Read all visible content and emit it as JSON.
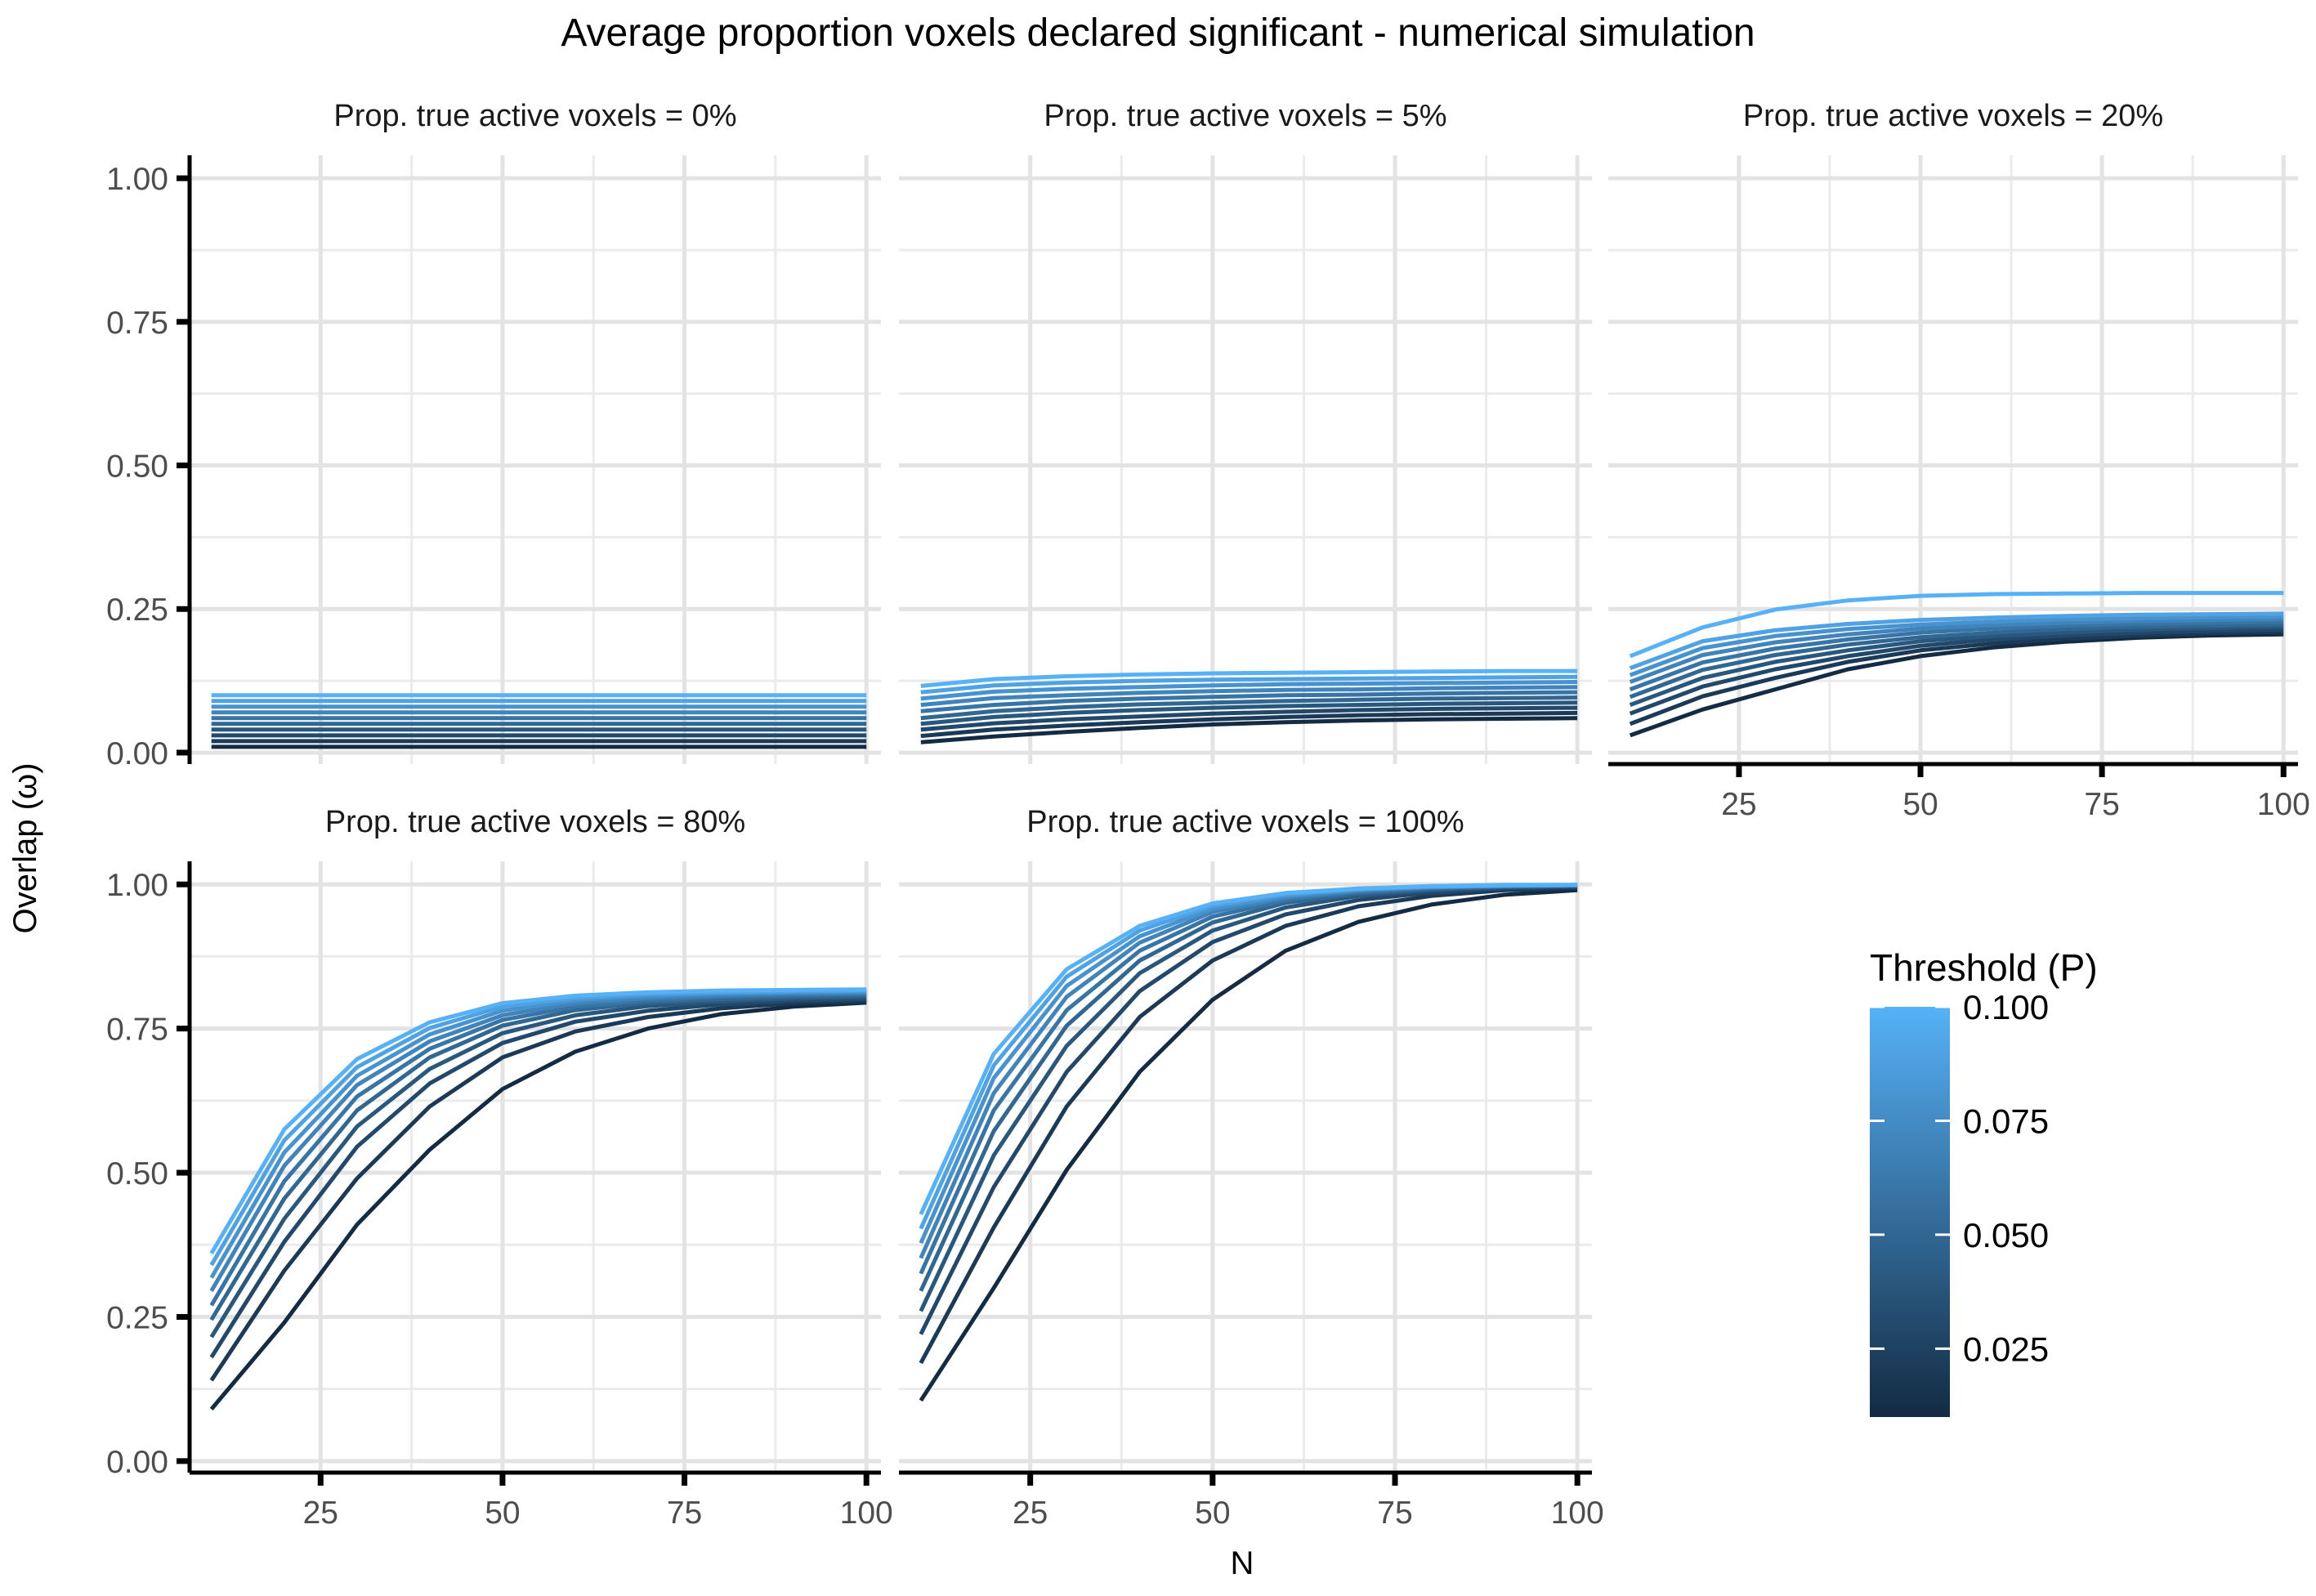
{
  "title": "Average proportion voxels declared significant - numerical simulation",
  "ylabel": "Overlap (ω)",
  "xlabel": "N",
  "legend": {
    "title": "Threshold (P)",
    "ticks": [
      "0.100",
      "0.075",
      "0.050",
      "0.025"
    ],
    "tick_values": [
      0.1,
      0.075,
      0.05,
      0.025
    ],
    "range": [
      0.01,
      0.1
    ],
    "color_low": "#132B43",
    "color_high": "#56B1F7"
  },
  "chart_data": {
    "type": "line",
    "facet_layout": "3 columns, 2 rows",
    "x_ticks": [
      "25",
      "50",
      "75",
      "100"
    ],
    "x_tick_values": [
      25,
      50,
      75,
      100
    ],
    "y_ticks": [
      "0.00",
      "0.25",
      "0.50",
      "0.75",
      "1.00"
    ],
    "y_tick_values": [
      0,
      0.25,
      0.5,
      0.75,
      1
    ],
    "xlim": [
      7,
      102
    ],
    "ylim": [
      -0.02,
      1.04
    ],
    "grid": true,
    "legend_position": "right",
    "x": [
      10,
      20,
      30,
      40,
      50,
      60,
      70,
      80,
      90,
      100
    ],
    "thresholds": [
      0.01,
      0.02,
      0.03,
      0.04,
      0.05,
      0.06,
      0.07,
      0.08,
      0.09,
      0.1
    ],
    "panels": [
      {
        "strip": "Prop. true active voxels = 0%",
        "show_x_axis": false,
        "series": [
          {
            "threshold": 0.01,
            "values": [
              0.01,
              0.01,
              0.01,
              0.01,
              0.01,
              0.01,
              0.01,
              0.01,
              0.01,
              0.01
            ]
          },
          {
            "threshold": 0.02,
            "values": [
              0.02,
              0.02,
              0.02,
              0.02,
              0.02,
              0.02,
              0.02,
              0.02,
              0.02,
              0.02
            ]
          },
          {
            "threshold": 0.03,
            "values": [
              0.03,
              0.03,
              0.03,
              0.03,
              0.03,
              0.03,
              0.03,
              0.03,
              0.03,
              0.03
            ]
          },
          {
            "threshold": 0.04,
            "values": [
              0.04,
              0.04,
              0.04,
              0.04,
              0.04,
              0.04,
              0.04,
              0.04,
              0.04,
              0.04
            ]
          },
          {
            "threshold": 0.05,
            "values": [
              0.05,
              0.05,
              0.05,
              0.05,
              0.05,
              0.05,
              0.05,
              0.05,
              0.05,
              0.05
            ]
          },
          {
            "threshold": 0.06,
            "values": [
              0.06,
              0.06,
              0.06,
              0.06,
              0.06,
              0.06,
              0.06,
              0.06,
              0.06,
              0.06
            ]
          },
          {
            "threshold": 0.07,
            "values": [
              0.07,
              0.07,
              0.07,
              0.07,
              0.07,
              0.07,
              0.07,
              0.07,
              0.07,
              0.07
            ]
          },
          {
            "threshold": 0.08,
            "values": [
              0.08,
              0.08,
              0.08,
              0.08,
              0.08,
              0.08,
              0.08,
              0.08,
              0.08,
              0.08
            ]
          },
          {
            "threshold": 0.09,
            "values": [
              0.09,
              0.09,
              0.09,
              0.09,
              0.09,
              0.09,
              0.09,
              0.09,
              0.09,
              0.09
            ]
          },
          {
            "threshold": 0.1,
            "values": [
              0.1,
              0.1,
              0.1,
              0.1,
              0.1,
              0.1,
              0.1,
              0.1,
              0.1,
              0.1
            ]
          }
        ]
      },
      {
        "strip": "Prop. true active voxels = 5%",
        "show_x_axis": false,
        "series": [
          {
            "threshold": 0.01,
            "values": [
              0.018,
              0.028,
              0.036,
              0.043,
              0.049,
              0.053,
              0.056,
              0.058,
              0.059,
              0.06
            ]
          },
          {
            "threshold": 0.02,
            "values": [
              0.029,
              0.04,
              0.047,
              0.053,
              0.058,
              0.062,
              0.065,
              0.067,
              0.068,
              0.069
            ]
          },
          {
            "threshold": 0.03,
            "values": [
              0.04,
              0.051,
              0.058,
              0.063,
              0.068,
              0.071,
              0.074,
              0.076,
              0.077,
              0.078
            ]
          },
          {
            "threshold": 0.04,
            "values": [
              0.05,
              0.062,
              0.069,
              0.074,
              0.078,
              0.081,
              0.083,
              0.085,
              0.086,
              0.087
            ]
          },
          {
            "threshold": 0.05,
            "values": [
              0.06,
              0.072,
              0.079,
              0.084,
              0.087,
              0.09,
              0.092,
              0.094,
              0.095,
              0.096
            ]
          },
          {
            "threshold": 0.06,
            "values": [
              0.072,
              0.083,
              0.09,
              0.094,
              0.097,
              0.1,
              0.101,
              0.103,
              0.104,
              0.105
            ]
          },
          {
            "threshold": 0.07,
            "values": [
              0.083,
              0.095,
              0.1,
              0.104,
              0.107,
              0.109,
              0.11,
              0.112,
              0.113,
              0.114
            ]
          },
          {
            "threshold": 0.08,
            "values": [
              0.094,
              0.106,
              0.111,
              0.114,
              0.117,
              0.119,
              0.12,
              0.121,
              0.122,
              0.123
            ]
          },
          {
            "threshold": 0.09,
            "values": [
              0.105,
              0.117,
              0.122,
              0.125,
              0.127,
              0.128,
              0.129,
              0.13,
              0.131,
              0.132
            ]
          },
          {
            "threshold": 0.1,
            "values": [
              0.116,
              0.128,
              0.133,
              0.136,
              0.138,
              0.139,
              0.14,
              0.141,
              0.142,
              0.142
            ]
          }
        ]
      },
      {
        "strip": "Prop. true active voxels = 20%",
        "show_x_axis": true,
        "series": [
          {
            "threshold": 0.01,
            "values": [
              0.03,
              0.075,
              0.11,
              0.145,
              0.168,
              0.183,
              0.193,
              0.2,
              0.204,
              0.206
            ]
          },
          {
            "threshold": 0.02,
            "values": [
              0.05,
              0.098,
              0.13,
              0.158,
              0.178,
              0.19,
              0.198,
              0.204,
              0.208,
              0.21
            ]
          },
          {
            "threshold": 0.03,
            "values": [
              0.068,
              0.115,
              0.145,
              0.168,
              0.186,
              0.197,
              0.204,
              0.209,
              0.212,
              0.214
            ]
          },
          {
            "threshold": 0.04,
            "values": [
              0.083,
              0.13,
              0.158,
              0.178,
              0.194,
              0.203,
              0.209,
              0.214,
              0.217,
              0.219
            ]
          },
          {
            "threshold": 0.05,
            "values": [
              0.097,
              0.144,
              0.17,
              0.188,
              0.201,
              0.209,
              0.215,
              0.219,
              0.221,
              0.223
            ]
          },
          {
            "threshold": 0.06,
            "values": [
              0.11,
              0.157,
              0.181,
              0.197,
              0.209,
              0.216,
              0.221,
              0.224,
              0.226,
              0.228
            ]
          },
          {
            "threshold": 0.07,
            "values": [
              0.123,
              0.17,
              0.192,
              0.206,
              0.216,
              0.222,
              0.226,
              0.229,
              0.231,
              0.233
            ]
          },
          {
            "threshold": 0.08,
            "values": [
              0.135,
              0.182,
              0.203,
              0.215,
              0.223,
              0.228,
              0.232,
              0.234,
              0.236,
              0.237
            ]
          },
          {
            "threshold": 0.09,
            "values": [
              0.147,
              0.194,
              0.213,
              0.224,
              0.231,
              0.235,
              0.238,
              0.24,
              0.241,
              0.242
            ]
          },
          {
            "threshold": 0.1,
            "values": [
              0.168,
              0.218,
              0.249,
              0.265,
              0.273,
              0.276,
              0.277,
              0.278,
              0.278,
              0.278
            ]
          }
        ]
      },
      {
        "strip": "Prop. true active voxels = 80%",
        "show_x_axis": true,
        "series": [
          {
            "threshold": 0.01,
            "values": [
              0.09,
              0.24,
              0.41,
              0.54,
              0.645,
              0.71,
              0.75,
              0.775,
              0.788,
              0.795
            ]
          },
          {
            "threshold": 0.02,
            "values": [
              0.14,
              0.33,
              0.49,
              0.615,
              0.7,
              0.745,
              0.77,
              0.785,
              0.794,
              0.798
            ]
          },
          {
            "threshold": 0.03,
            "values": [
              0.18,
              0.38,
              0.545,
              0.655,
              0.725,
              0.762,
              0.781,
              0.792,
              0.798,
              0.801
            ]
          },
          {
            "threshold": 0.04,
            "values": [
              0.215,
              0.42,
              0.58,
              0.68,
              0.742,
              0.773,
              0.789,
              0.797,
              0.802,
              0.804
            ]
          },
          {
            "threshold": 0.05,
            "values": [
              0.245,
              0.455,
              0.608,
              0.7,
              0.755,
              0.782,
              0.795,
              0.801,
              0.805,
              0.807
            ]
          },
          {
            "threshold": 0.06,
            "values": [
              0.27,
              0.485,
              0.632,
              0.715,
              0.765,
              0.788,
              0.799,
              0.805,
              0.808,
              0.81
            ]
          },
          {
            "threshold": 0.07,
            "values": [
              0.295,
              0.512,
              0.652,
              0.728,
              0.773,
              0.794,
              0.803,
              0.808,
              0.811,
              0.812
            ]
          },
          {
            "threshold": 0.08,
            "values": [
              0.318,
              0.535,
              0.668,
              0.74,
              0.781,
              0.799,
              0.807,
              0.811,
              0.813,
              0.814
            ]
          },
          {
            "threshold": 0.09,
            "values": [
              0.34,
              0.556,
              0.683,
              0.751,
              0.788,
              0.803,
              0.81,
              0.813,
              0.815,
              0.816
            ]
          },
          {
            "threshold": 0.1,
            "values": [
              0.36,
              0.575,
              0.697,
              0.761,
              0.794,
              0.807,
              0.813,
              0.816,
              0.817,
              0.818
            ]
          }
        ]
      },
      {
        "strip": "Prop. true active voxels = 100%",
        "show_x_axis": true,
        "series": [
          {
            "threshold": 0.01,
            "values": [
              0.105,
              0.3,
              0.505,
              0.675,
              0.8,
              0.885,
              0.935,
              0.965,
              0.982,
              0.99
            ]
          },
          {
            "threshold": 0.02,
            "values": [
              0.17,
              0.405,
              0.615,
              0.77,
              0.868,
              0.928,
              0.962,
              0.98,
              0.99,
              0.994
            ]
          },
          {
            "threshold": 0.03,
            "values": [
              0.22,
              0.475,
              0.675,
              0.815,
              0.9,
              0.948,
              0.973,
              0.986,
              0.993,
              0.996
            ]
          },
          {
            "threshold": 0.04,
            "values": [
              0.26,
              0.53,
              0.72,
              0.846,
              0.92,
              0.96,
              0.98,
              0.99,
              0.995,
              0.997
            ]
          },
          {
            "threshold": 0.05,
            "values": [
              0.295,
              0.572,
              0.755,
              0.868,
              0.934,
              0.968,
              0.984,
              0.992,
              0.996,
              0.998
            ]
          },
          {
            "threshold": 0.06,
            "values": [
              0.325,
              0.608,
              0.782,
              0.885,
              0.944,
              0.973,
              0.987,
              0.994,
              0.997,
              0.998
            ]
          },
          {
            "threshold": 0.07,
            "values": [
              0.352,
              0.638,
              0.805,
              0.899,
              0.952,
              0.977,
              0.989,
              0.995,
              0.997,
              0.999
            ]
          },
          {
            "threshold": 0.08,
            "values": [
              0.378,
              0.664,
              0.824,
              0.91,
              0.958,
              0.98,
              0.991,
              0.996,
              0.998,
              0.999
            ]
          },
          {
            "threshold": 0.09,
            "values": [
              0.403,
              0.686,
              0.84,
              0.92,
              0.963,
              0.983,
              0.992,
              0.996,
              0.998,
              0.999
            ]
          },
          {
            "threshold": 0.1,
            "values": [
              0.428,
              0.706,
              0.853,
              0.928,
              0.967,
              0.985,
              0.993,
              0.997,
              0.999,
              0.999
            ]
          }
        ]
      }
    ]
  }
}
